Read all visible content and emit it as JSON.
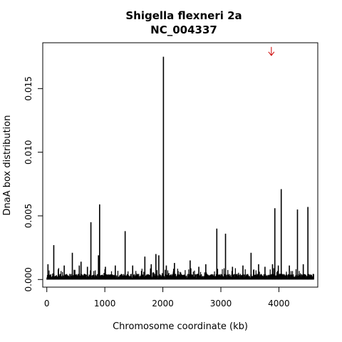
{
  "chart_data": {
    "type": "bar",
    "title": "Shigella flexneri 2a",
    "subtitle": "NC_004337",
    "xlabel": "Chromosome coordinate (kb)",
    "ylabel": "DnaA box distribution",
    "xlim": [
      -70,
      4670
    ],
    "ylim": [
      -0.0006,
      0.0186
    ],
    "x_ticks": [
      0,
      1000,
      2000,
      3000,
      4000
    ],
    "x_tick_labels": [
      "0",
      "1000",
      "2000",
      "3000",
      "4000"
    ],
    "y_ticks": [
      0.0,
      0.005,
      0.01,
      0.015
    ],
    "y_tick_labels": [
      "0.000",
      "0.005",
      "0.010",
      "0.015"
    ],
    "grid": false,
    "legend": "none",
    "bar_color": "#000000",
    "annotation_color": "#cc0000",
    "annotations": [
      {
        "type": "arrow",
        "label": "",
        "x": 3870,
        "y": 0.0176
      }
    ],
    "peaks": [
      {
        "x": 20,
        "y": 0.0012
      },
      {
        "x": 120,
        "y": 0.0027
      },
      {
        "x": 200,
        "y": 0.0008
      },
      {
        "x": 300,
        "y": 0.0011
      },
      {
        "x": 440,
        "y": 0.0021
      },
      {
        "x": 560,
        "y": 0.0011
      },
      {
        "x": 590,
        "y": 0.0014
      },
      {
        "x": 700,
        "y": 0.001
      },
      {
        "x": 760,
        "y": 0.0045
      },
      {
        "x": 890,
        "y": 0.0019
      },
      {
        "x": 910,
        "y": 0.0059
      },
      {
        "x": 1010,
        "y": 0.001
      },
      {
        "x": 1180,
        "y": 0.0011
      },
      {
        "x": 1350,
        "y": 0.0038
      },
      {
        "x": 1480,
        "y": 0.0011
      },
      {
        "x": 1690,
        "y": 0.0018
      },
      {
        "x": 1800,
        "y": 0.0012
      },
      {
        "x": 1880,
        "y": 0.002
      },
      {
        "x": 1930,
        "y": 0.0019
      },
      {
        "x": 2010,
        "y": 0.0175
      },
      {
        "x": 2060,
        "y": 0.0011
      },
      {
        "x": 2200,
        "y": 0.0013
      },
      {
        "x": 2470,
        "y": 0.0015
      },
      {
        "x": 2620,
        "y": 0.001
      },
      {
        "x": 2740,
        "y": 0.0012
      },
      {
        "x": 2930,
        "y": 0.004
      },
      {
        "x": 3080,
        "y": 0.0036
      },
      {
        "x": 3200,
        "y": 0.001
      },
      {
        "x": 3380,
        "y": 0.0011
      },
      {
        "x": 3520,
        "y": 0.0021
      },
      {
        "x": 3650,
        "y": 0.0012
      },
      {
        "x": 3760,
        "y": 0.001
      },
      {
        "x": 3890,
        "y": 0.0012
      },
      {
        "x": 3930,
        "y": 0.0056
      },
      {
        "x": 3990,
        "y": 0.0011
      },
      {
        "x": 4040,
        "y": 0.0071
      },
      {
        "x": 4180,
        "y": 0.0011
      },
      {
        "x": 4320,
        "y": 0.0055
      },
      {
        "x": 4420,
        "y": 0.0012
      },
      {
        "x": 4500,
        "y": 0.0057
      }
    ],
    "baseline": {
      "x_start": 0,
      "x_end": 4600,
      "typical_y": 0.0003,
      "max_y": 0.0009
    }
  }
}
